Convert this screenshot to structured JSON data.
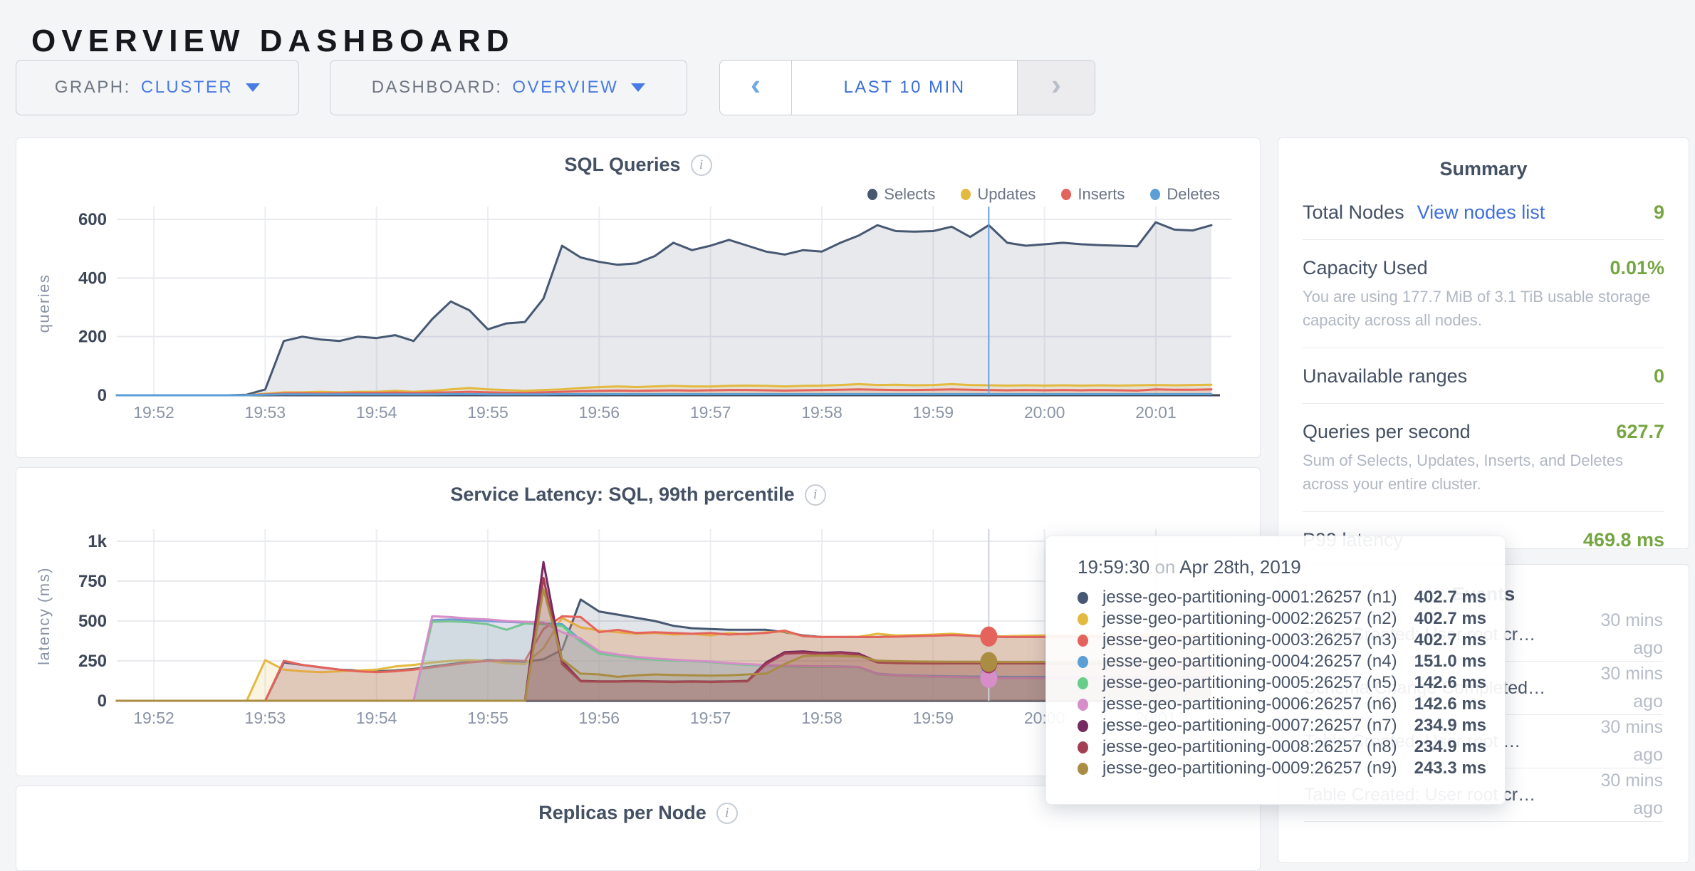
{
  "page": {
    "title": "OVERVIEW DASHBOARD"
  },
  "controls": {
    "graph": {
      "label": "GRAPH:",
      "value": "CLUSTER"
    },
    "dashboard": {
      "label": "DASHBOARD:",
      "value": "OVERVIEW"
    },
    "time": {
      "label": "LAST 10 MIN",
      "prev": "‹",
      "next": "›",
      "next_disabled": true
    }
  },
  "summary": {
    "title": "Summary",
    "rows": [
      {
        "label": "Total Nodes",
        "link": "View nodes list",
        "value": "9"
      },
      {
        "label": "Capacity Used",
        "value": "0.01%",
        "desc": "You are using 177.7 MiB of 3.1 TiB usable storage capacity across all nodes."
      },
      {
        "label": "Unavailable ranges",
        "value": "0"
      },
      {
        "label": "Queries per second",
        "value": "627.7",
        "desc": "Sum of Selects, Updates, Inserts, and Deletes across your entire cluster."
      },
      {
        "label": "P99 latency",
        "value": "469.8 ms"
      }
    ]
  },
  "events": {
    "title": "Events",
    "rows": [
      {
        "text": "Table Created: User root cr…",
        "time": "30 mins ago"
      },
      {
        "text": "Schema Change Completed…",
        "time": "30 mins ago"
      },
      {
        "text": "Table Created: User root …",
        "time": "30 mins ago"
      },
      {
        "text": "Table Created: User root cr…",
        "time": "30 mins ago"
      }
    ]
  },
  "tooltip": {
    "time": "19:59:30",
    "on": "on",
    "date": "Apr 28th, 2019",
    "rows": [
      {
        "color": "#475872",
        "name": "jesse-geo-partitioning-0001:26257 (n1)",
        "value": "402.7 ms"
      },
      {
        "color": "#e3b93f",
        "name": "jesse-geo-partitioning-0002:26257 (n2)",
        "value": "402.7 ms"
      },
      {
        "color": "#e4635c",
        "name": "jesse-geo-partitioning-0003:26257 (n3)",
        "value": "402.7 ms"
      },
      {
        "color": "#5c9fd6",
        "name": "jesse-geo-partitioning-0004:26257 (n4)",
        "value": "151.0 ms"
      },
      {
        "color": "#67ce89",
        "name": "jesse-geo-partitioning-0005:26257 (n5)",
        "value": "142.6 ms"
      },
      {
        "color": "#d68dc8",
        "name": "jesse-geo-partitioning-0006:26257 (n6)",
        "value": "142.6 ms"
      },
      {
        "color": "#772a60",
        "name": "jesse-geo-partitioning-0007:26257 (n7)",
        "value": "234.9 ms"
      },
      {
        "color": "#a43e53",
        "name": "jesse-geo-partitioning-0008:26257 (n8)",
        "value": "234.9 ms"
      },
      {
        "color": "#aa8c42",
        "name": "jesse-geo-partitioning-0009:26257 (n9)",
        "value": "243.3 ms"
      }
    ]
  },
  "replicas_chart": {
    "title": "Replicas per Node"
  },
  "chart_data": [
    {
      "id": "sql",
      "type": "area",
      "title": "SQL Queries",
      "ylabel": "queries",
      "ylim": [
        0,
        600
      ],
      "ytick_values": [
        0,
        200,
        400,
        600
      ],
      "ytick_labels": [
        "0",
        "200",
        "400",
        "600"
      ],
      "x_ticks": [
        "19:52",
        "19:53",
        "19:54",
        "19:55",
        "19:56",
        "19:57",
        "19:58",
        "19:59",
        "20:00",
        "20:01"
      ],
      "x_start": "19:51:40",
      "x_step_seconds": 10,
      "grid": true,
      "legend_position": "top-right",
      "hover_time": "19:59:30",
      "series": [
        {
          "name": "Selects",
          "color": "#475872",
          "values": [
            0,
            0,
            0,
            0,
            0,
            0,
            0,
            2,
            20,
            185,
            200,
            190,
            185,
            200,
            195,
            205,
            185,
            260,
            320,
            290,
            225,
            245,
            250,
            330,
            510,
            470,
            455,
            445,
            450,
            475,
            520,
            495,
            510,
            530,
            510,
            490,
            480,
            495,
            490,
            520,
            545,
            580,
            560,
            558,
            560,
            575,
            540,
            580,
            520,
            510,
            515,
            520,
            515,
            512,
            510,
            508,
            590,
            565,
            562,
            580
          ]
        },
        {
          "name": "Updates",
          "color": "#e3b93f",
          "values": [
            0,
            0,
            0,
            0,
            0,
            0,
            0,
            0,
            5,
            10,
            10,
            12,
            10,
            12,
            12,
            15,
            12,
            15,
            20,
            25,
            20,
            18,
            15,
            18,
            20,
            25,
            28,
            30,
            28,
            30,
            32,
            30,
            30,
            32,
            33,
            32,
            30,
            32,
            33,
            35,
            38,
            35,
            36,
            34,
            35,
            38,
            35,
            34,
            33,
            34,
            33,
            34,
            33,
            34,
            33,
            34,
            35,
            34,
            35,
            36
          ]
        },
        {
          "name": "Inserts",
          "color": "#e4635c",
          "values": [
            0,
            0,
            0,
            0,
            0,
            0,
            0,
            0,
            3,
            6,
            7,
            6,
            7,
            8,
            8,
            9,
            8,
            9,
            10,
            12,
            10,
            9,
            8,
            10,
            12,
            14,
            15,
            16,
            15,
            16,
            17,
            16,
            17,
            18,
            18,
            17,
            16,
            17,
            18,
            19,
            20,
            19,
            18,
            18,
            19,
            20,
            19,
            18,
            17,
            18,
            17,
            18,
            17,
            18,
            17,
            16,
            20,
            19,
            19,
            20
          ]
        },
        {
          "name": "Deletes",
          "color": "#5c9fd6",
          "values": [
            0,
            0,
            0,
            0,
            0,
            0,
            0,
            0,
            2,
            3,
            3,
            3,
            3,
            3,
            3,
            3,
            3,
            3,
            4,
            4,
            3,
            3,
            3,
            3,
            4,
            4,
            4,
            4,
            4,
            4,
            4,
            4,
            4,
            4,
            4,
            4,
            4,
            4,
            4,
            4,
            4,
            4,
            4,
            4,
            4,
            4,
            4,
            4,
            4,
            4,
            4,
            4,
            4,
            4,
            4,
            4,
            4,
            4,
            4,
            4
          ]
        }
      ]
    },
    {
      "id": "latency",
      "type": "area",
      "title": "Service Latency: SQL, 99th percentile",
      "ylabel": "latency (ms)",
      "ylim": [
        0,
        1000
      ],
      "ytick_values": [
        0,
        250,
        500,
        750,
        1000
      ],
      "ytick_labels": [
        "0",
        "250",
        "500",
        "750",
        "1k"
      ],
      "x_ticks": [
        "19:52",
        "19:53",
        "19:54",
        "19:55",
        "19:56",
        "19:57",
        "19:58",
        "19:59",
        "20:00",
        "20:01"
      ],
      "x_start": "19:51:40",
      "x_step_seconds": 10,
      "grid": true,
      "legend_position": "none",
      "hover_time": "19:59:30",
      "series": [
        {
          "name": "jesse-geo-partitioning-0001:26257 (n1)",
          "color": "#475872",
          "values": [
            0,
            0,
            0,
            0,
            0,
            0,
            0,
            0,
            0,
            240,
            225,
            210,
            195,
            190,
            185,
            190,
            200,
            215,
            230,
            245,
            255,
            250,
            245,
            260,
            320,
            635,
            560,
            540,
            520,
            500,
            470,
            455,
            450,
            445,
            445,
            445,
            430,
            410,
            400,
            400,
            400,
            400,
            405,
            408,
            410,
            415,
            408,
            402.7,
            400,
            400,
            402,
            402,
            402,
            402,
            402,
            402,
            405,
            405,
            405,
            405
          ]
        },
        {
          "name": "jesse-geo-partitioning-0002:26257 (n2)",
          "color": "#e3b93f",
          "values": [
            0,
            0,
            0,
            0,
            0,
            0,
            0,
            0,
            255,
            195,
            185,
            180,
            185,
            190,
            195,
            215,
            225,
            240,
            250,
            255,
            250,
            235,
            230,
            330,
            520,
            460,
            440,
            430,
            420,
            425,
            415,
            420,
            410,
            425,
            415,
            430,
            435,
            405,
            400,
            400,
            402,
            420,
            410,
            412,
            415,
            420,
            412,
            402.7,
            405,
            408,
            410,
            410,
            410,
            410,
            410,
            410,
            412,
            412,
            412,
            412
          ]
        },
        {
          "name": "jesse-geo-partitioning-0003:26257 (n3)",
          "color": "#e4635c",
          "values": [
            0,
            0,
            0,
            0,
            0,
            0,
            0,
            0,
            0,
            250,
            225,
            210,
            195,
            185,
            180,
            185,
            195,
            210,
            225,
            240,
            250,
            255,
            250,
            450,
            530,
            525,
            430,
            445,
            425,
            430,
            425,
            420,
            425,
            415,
            420,
            425,
            440,
            405,
            400,
            400,
            400,
            400,
            402,
            405,
            408,
            412,
            408,
            402.7,
            400,
            400,
            400,
            400,
            400,
            400,
            400,
            400,
            402,
            402,
            402,
            402
          ]
        },
        {
          "name": "jesse-geo-partitioning-0004:26257 (n4)",
          "color": "#5c9fd6",
          "values": [
            0,
            0,
            0,
            0,
            0,
            0,
            0,
            0,
            0,
            0,
            0,
            0,
            0,
            0,
            0,
            0,
            0,
            505,
            510,
            505,
            500,
            495,
            490,
            485,
            480,
            380,
            300,
            285,
            270,
            260,
            255,
            250,
            245,
            235,
            228,
            222,
            218,
            215,
            215,
            215,
            212,
            170,
            162,
            158,
            155,
            153,
            152,
            151,
            150,
            150,
            150,
            150,
            150,
            150,
            150,
            150,
            150,
            150,
            150,
            150
          ]
        },
        {
          "name": "jesse-geo-partitioning-0005:26257 (n5)",
          "color": "#67ce89",
          "values": [
            0,
            0,
            0,
            0,
            0,
            0,
            0,
            0,
            0,
            0,
            0,
            0,
            0,
            0,
            0,
            0,
            0,
            495,
            498,
            492,
            480,
            445,
            485,
            480,
            470,
            370,
            295,
            280,
            265,
            258,
            252,
            248,
            242,
            232,
            225,
            220,
            215,
            212,
            212,
            212,
            210,
            165,
            158,
            152,
            150,
            148,
            145,
            142.6,
            142,
            142,
            142,
            142,
            142,
            142,
            142,
            142,
            142,
            142,
            142,
            142
          ]
        },
        {
          "name": "jesse-geo-partitioning-0006:26257 (n6)",
          "color": "#d68dc8",
          "values": [
            0,
            0,
            0,
            0,
            0,
            0,
            0,
            0,
            0,
            0,
            0,
            0,
            0,
            0,
            0,
            0,
            0,
            530,
            525,
            515,
            510,
            500,
            495,
            490,
            430,
            390,
            310,
            290,
            275,
            265,
            258,
            252,
            246,
            236,
            230,
            224,
            220,
            218,
            216,
            214,
            212,
            168,
            160,
            155,
            152,
            150,
            146,
            142.6,
            142,
            142,
            142,
            142,
            142,
            142,
            142,
            142,
            142,
            142,
            142,
            142
          ]
        },
        {
          "name": "jesse-geo-partitioning-0007:26257 (n7)",
          "color": "#772a60",
          "values": [
            0,
            0,
            0,
            0,
            0,
            0,
            0,
            0,
            0,
            0,
            0,
            0,
            0,
            0,
            0,
            0,
            0,
            0,
            0,
            0,
            0,
            0,
            0,
            870,
            250,
            125,
            122,
            122,
            124,
            122,
            120,
            122,
            120,
            122,
            125,
            240,
            305,
            310,
            300,
            305,
            295,
            245,
            238,
            236,
            235,
            236,
            235,
            234.9,
            235,
            235,
            235,
            235,
            235,
            235,
            235,
            235,
            235,
            235,
            235,
            235
          ]
        },
        {
          "name": "jesse-geo-partitioning-0008:26257 (n8)",
          "color": "#a43e53",
          "values": [
            0,
            0,
            0,
            0,
            0,
            0,
            0,
            0,
            0,
            0,
            0,
            0,
            0,
            0,
            0,
            0,
            0,
            0,
            0,
            0,
            0,
            0,
            0,
            770,
            230,
            122,
            120,
            120,
            122,
            120,
            118,
            120,
            118,
            120,
            122,
            230,
            295,
            300,
            292,
            298,
            288,
            240,
            236,
            235,
            234,
            235,
            235,
            234.9,
            235,
            235,
            235,
            235,
            235,
            235,
            235,
            235,
            235,
            235,
            235,
            235
          ]
        },
        {
          "name": "jesse-geo-partitioning-0009:26257 (n9)",
          "color": "#aa8c42",
          "values": [
            0,
            0,
            0,
            0,
            0,
            0,
            0,
            0,
            0,
            0,
            0,
            0,
            0,
            0,
            0,
            0,
            0,
            0,
            0,
            0,
            0,
            0,
            0,
            700,
            260,
            170,
            165,
            150,
            160,
            165,
            162,
            160,
            158,
            160,
            165,
            170,
            230,
            280,
            285,
            280,
            278,
            252,
            248,
            246,
            245,
            244,
            244,
            243.3,
            243,
            243,
            243,
            243,
            243,
            243,
            243,
            243,
            243,
            243,
            243,
            243
          ]
        }
      ]
    }
  ],
  "colors": {
    "accent_blue": "#4a7be4",
    "link_blue": "#3e6fe0",
    "metric_green": "#76a642",
    "hover_line_sql": "#6b9fe0",
    "hover_line_latency": "#cdd2d9"
  }
}
